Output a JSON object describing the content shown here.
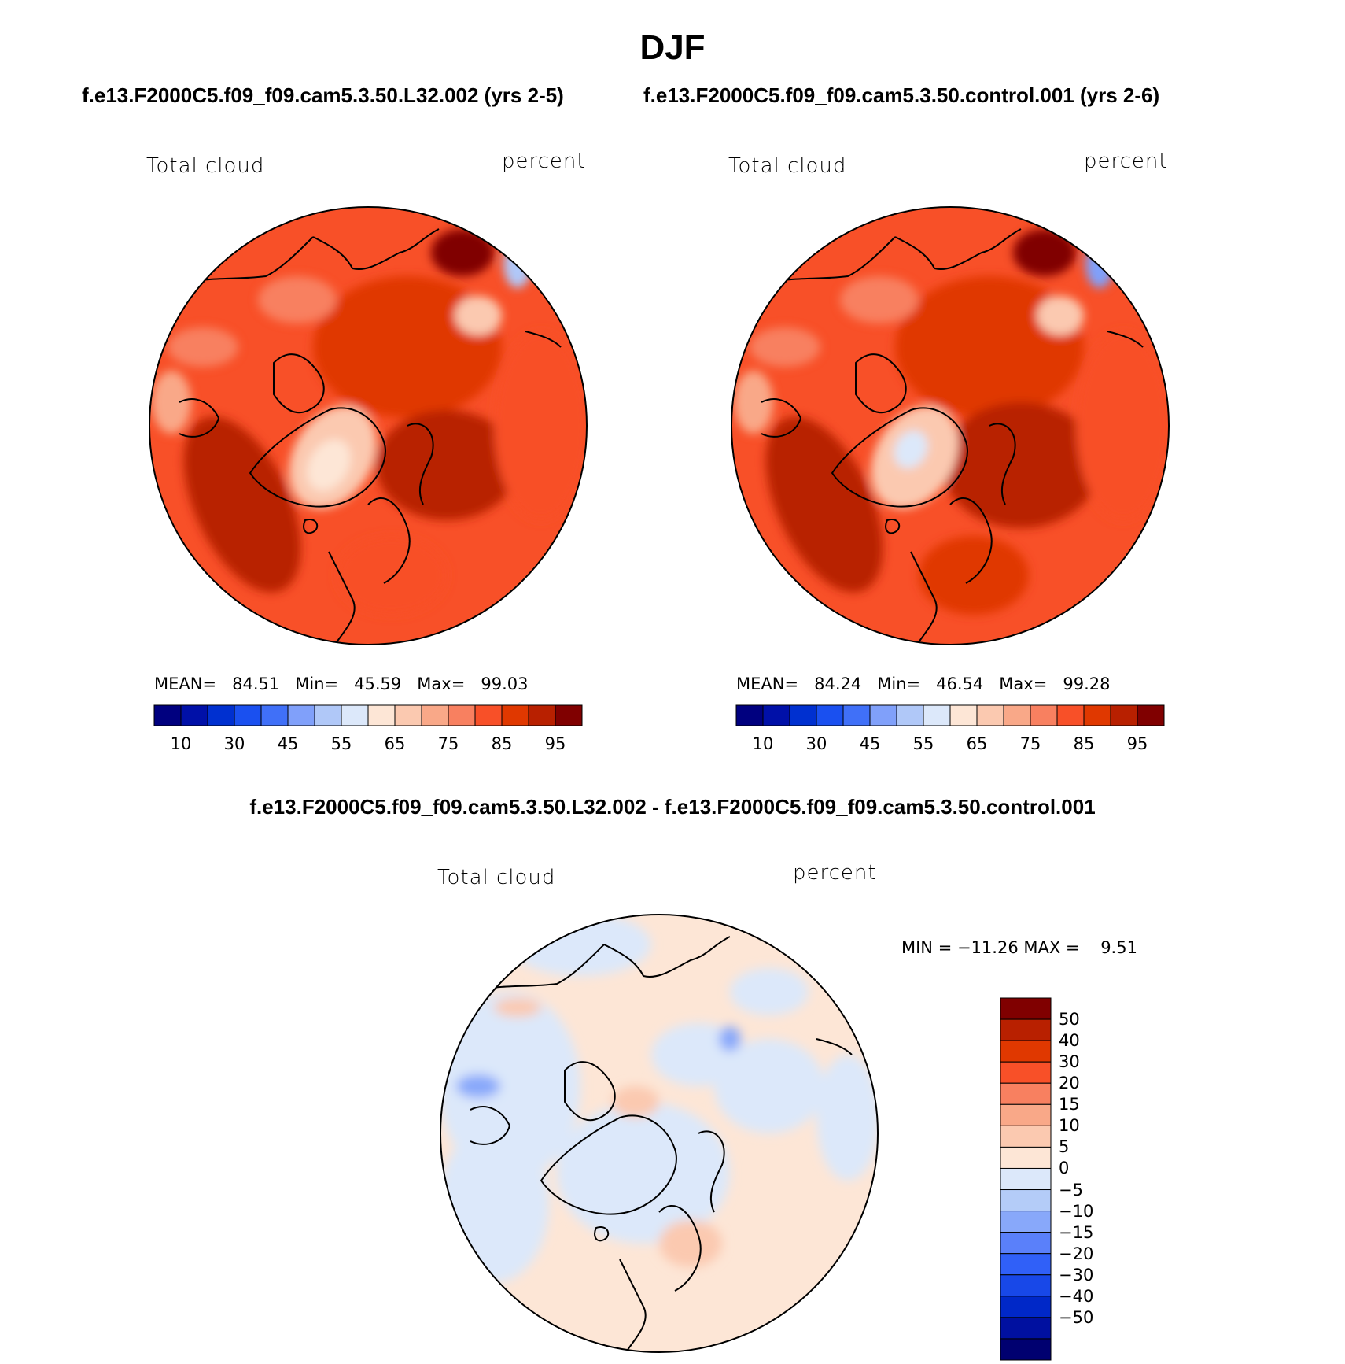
{
  "title": "DJF",
  "colors": {
    "full_scale": [
      "#00007f",
      "#0010a8",
      "#0030d0",
      "#1a50f0",
      "#4070f8",
      "#80a0fa",
      "#b0c8f8",
      "#dce8fa",
      "#fde6d6",
      "#fbc9b0",
      "#f9a888",
      "#f88060",
      "#f85028",
      "#e03800",
      "#b82000",
      "#800000"
    ],
    "diff_scale": [
      "#000070",
      "#0010a0",
      "#0028c8",
      "#1848e8",
      "#3060f8",
      "#5a80fa",
      "#88a8fa",
      "#b4ccf8",
      "#dce8fa",
      "#fde6d6",
      "#fbc9b0",
      "#f9a888",
      "#f88060",
      "#f85028",
      "#e03800",
      "#b82000",
      "#800000"
    ]
  },
  "panels": [
    {
      "heading": "f.e13.F2000C5.f09_f09.cam5.3.50.L32.002 (yrs 2-5)",
      "variable": "Total cloud",
      "units": "percent",
      "stats": {
        "mean_label": "MEAN=",
        "mean": "84.51",
        "min_label": "Min=",
        "min": "45.59",
        "max_label": "Max=",
        "max": "99.03"
      }
    },
    {
      "heading": "f.e13.F2000C5.f09_f09.cam5.3.50.control.001 (yrs 2-6)",
      "variable": "Total cloud",
      "units": "percent",
      "stats": {
        "mean_label": "MEAN=",
        "mean": "84.24",
        "min_label": "Min=",
        "min": "46.54",
        "max_label": "Max=",
        "max": "99.28"
      }
    }
  ],
  "diff_panel": {
    "heading": "f.e13.F2000C5.f09_f09.cam5.3.50.L32.002 - f.e13.F2000C5.f09_f09.cam5.3.50.control.001",
    "variable": "Total cloud",
    "units": "percent",
    "minmax": "MIN = −11.26 MAX =    9.51"
  },
  "chart_data": [
    {
      "type": "heatmap",
      "projection": "north polar stereographic",
      "title": "f.e13.F2000C5.f09_f09.cam5.3.50.L32.002 (yrs 2-5)",
      "variable": "Total cloud",
      "units": "percent",
      "mean": 84.51,
      "min": 45.59,
      "max": 99.03,
      "colorbar_levels": [
        5,
        10,
        20,
        30,
        40,
        45,
        50,
        55,
        60,
        65,
        70,
        75,
        80,
        85,
        90,
        95
      ],
      "colorbar_tick_labels": [
        "10",
        "30",
        "45",
        "55",
        "65",
        "75",
        "85",
        "95"
      ]
    },
    {
      "type": "heatmap",
      "projection": "north polar stereographic",
      "title": "f.e13.F2000C5.f09_f09.cam5.3.50.control.001 (yrs 2-6)",
      "variable": "Total cloud",
      "units": "percent",
      "mean": 84.24,
      "min": 46.54,
      "max": 99.28,
      "colorbar_levels": [
        5,
        10,
        20,
        30,
        40,
        45,
        50,
        55,
        60,
        65,
        70,
        75,
        80,
        85,
        90,
        95
      ],
      "colorbar_tick_labels": [
        "10",
        "30",
        "45",
        "55",
        "65",
        "75",
        "85",
        "95"
      ]
    },
    {
      "type": "heatmap",
      "projection": "north polar stereographic",
      "title": "f.e13.F2000C5.f09_f09.cam5.3.50.L32.002 - f.e13.F2000C5.f09_f09.cam5.3.50.control.001",
      "variable": "Total cloud",
      "units": "percent",
      "min": -11.26,
      "max": 9.51,
      "colorbar_levels": [
        50,
        40,
        30,
        20,
        15,
        10,
        5,
        0,
        -5,
        -10,
        -15,
        -20,
        -30,
        -40,
        -50
      ],
      "colorbar_tick_labels": [
        "50",
        "40",
        "30",
        "20",
        "15",
        "10",
        "5",
        "0",
        "−5",
        "−10",
        "−15",
        "−20",
        "−30",
        "−40",
        "−50"
      ]
    }
  ]
}
